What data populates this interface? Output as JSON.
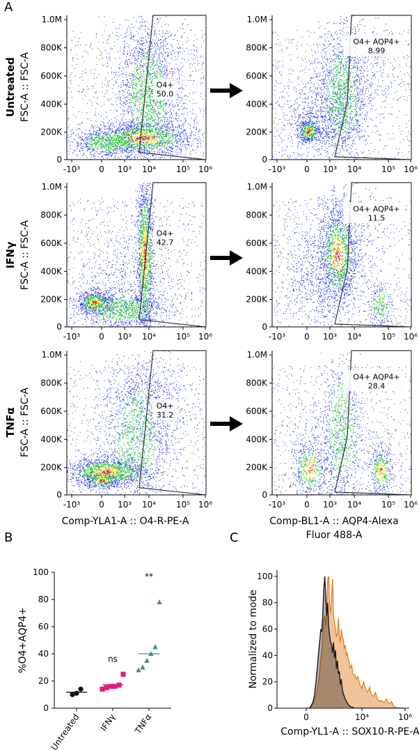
{
  "figure": {
    "panel_letters": [
      "A",
      "B",
      "C"
    ],
    "row_labels": [
      "Untreated",
      "IFNγ",
      "TNFα"
    ],
    "x_title_left": "Comp-YLA1-A :: O4-R-PE-A",
    "x_title_right_line1": "Comp-BL1-A :: AQP4-Alexa",
    "x_title_right_line2": "Fluor 488-A",
    "y_title_flow": "FSC-A :: FSC-A",
    "x_ticks": [
      "-10³",
      "0",
      "10³",
      "10⁴",
      "10⁵",
      "10⁶"
    ],
    "y_ticks": [
      "0",
      "200K",
      "400K",
      "600K",
      "800K",
      "1.0M"
    ]
  },
  "colors": {
    "density_low": "#1f2fe0",
    "density_mid": "#23c92e",
    "density_high": "#f0e020",
    "density_peak": "#e0200f",
    "ifn_marker": "#e21d7a",
    "tnf_marker": "#3d8c8c",
    "hist_orange": "#e07b1a",
    "hist_black": "#1a1a1a"
  },
  "chart_data": [
    {
      "type": "scatter",
      "panel": "A",
      "row": "Untreated",
      "gate_name": "O4+",
      "gate_value": "50.0",
      "xlabel": "Comp-YLA1-A :: O4-R-PE-A",
      "ylabel": "FSC-A :: FSC-A"
    },
    {
      "type": "scatter",
      "panel": "A",
      "row": "Untreated",
      "gate_name": "O4+ AQP4+",
      "gate_value": "8.99",
      "xlabel": "Comp-BL1-A :: AQP4-Alexa Fluor 488-A",
      "ylabel": "FSC-A :: FSC-A"
    },
    {
      "type": "scatter",
      "panel": "A",
      "row": "IFNγ",
      "gate_name": "O4+",
      "gate_value": "42.7",
      "xlabel": "Comp-YLA1-A :: O4-R-PE-A",
      "ylabel": "FSC-A :: FSC-A"
    },
    {
      "type": "scatter",
      "panel": "A",
      "row": "IFNγ",
      "gate_name": "O4+ AQP4+",
      "gate_value": "11.5",
      "xlabel": "Comp-BL1-A :: AQP4-Alexa Fluor 488-A",
      "ylabel": "FSC-A :: FSC-A"
    },
    {
      "type": "scatter",
      "panel": "A",
      "row": "TNFα",
      "gate_name": "O4+",
      "gate_value": "31.2",
      "xlabel": "Comp-YLA1-A :: O4-R-PE-A",
      "ylabel": "FSC-A :: FSC-A"
    },
    {
      "type": "scatter",
      "panel": "A",
      "row": "TNFα",
      "gate_name": "O4+ AQP4+",
      "gate_value": "28.4",
      "xlabel": "Comp-BL1-A :: AQP4-Alexa Fluor 488-A",
      "ylabel": "FSC-A :: FSC-A"
    },
    {
      "type": "scatter",
      "panel": "B",
      "ylabel": "%O4+AQP4+",
      "ylim": [
        0,
        100
      ],
      "yticks": [
        "0",
        "20",
        "40",
        "60",
        "80",
        "100"
      ],
      "categories": [
        "Untreated",
        "IFNγ",
        "TNFα"
      ],
      "series": [
        {
          "name": "Untreated",
          "values": [
            10,
            11,
            14
          ],
          "mean": 11.7
        },
        {
          "name": "IFNγ",
          "values": [
            14,
            15,
            16,
            16,
            17,
            25
          ],
          "mean": 17.2
        },
        {
          "name": "TNFα",
          "values": [
            28,
            30,
            35,
            40,
            45,
            78
          ],
          "mean": 40
        }
      ],
      "annotations": [
        {
          "category": "IFNγ",
          "text": "ns",
          "y": 34
        },
        {
          "category": "TNFα",
          "text": "**",
          "y": 95
        }
      ]
    },
    {
      "type": "area",
      "panel": "C",
      "ylabel": "Normalized to mode",
      "xlabel": "Comp-YL1-A :: SOX10-R-PE-A",
      "ylim": [
        0,
        100
      ],
      "yticks": [
        "0",
        "20",
        "40",
        "60",
        "80",
        "100"
      ],
      "xticks": [
        "0",
        "10⁴",
        "10⁶"
      ],
      "series": [
        {
          "name": "orange histogram",
          "color": "#e07b1a",
          "x": [
            0.0,
            0.05,
            0.08,
            0.11,
            0.14,
            0.17,
            0.2,
            0.23,
            0.26,
            0.28,
            0.3,
            0.32,
            0.34,
            0.36,
            0.38,
            0.4,
            0.42,
            0.44,
            0.46,
            0.48,
            0.5,
            0.52,
            0.54,
            0.56,
            0.58,
            0.6,
            0.62,
            0.64,
            0.66,
            0.68,
            0.7,
            0.72,
            0.74,
            0.76,
            0.78,
            0.8,
            0.82,
            0.84,
            0.86,
            0.88,
            0.9,
            0.93,
            0.96,
            1.0,
            1.03,
            1.06,
            1.1,
            1.14,
            1.18,
            1.22,
            1.26,
            1.3,
            1.34,
            1.38,
            1.42,
            1.46,
            1.5,
            1.55,
            1.6,
            1.65,
            1.7,
            1.75,
            1.8,
            1.9,
            2.0
          ],
          "y": [
            0,
            0,
            1,
            3,
            4,
            6,
            10,
            15,
            22,
            30,
            38,
            45,
            55,
            68,
            70,
            62,
            75,
            98,
            100,
            78,
            72,
            85,
            98,
            70,
            65,
            60,
            54,
            57,
            68,
            55,
            50,
            60,
            55,
            52,
            45,
            48,
            40,
            42,
            38,
            35,
            30,
            33,
            26,
            25,
            22,
            24,
            18,
            15,
            20,
            14,
            12,
            16,
            10,
            9,
            12,
            7,
            5,
            6,
            4,
            7,
            3,
            5,
            1,
            0,
            0
          ]
        },
        {
          "name": "black histogram",
          "color": "#1a1a1a",
          "x": [
            0.0,
            0.08,
            0.11,
            0.14,
            0.17,
            0.2,
            0.23,
            0.26,
            0.28,
            0.3,
            0.32,
            0.34,
            0.36,
            0.38,
            0.4,
            0.42,
            0.44,
            0.46,
            0.48,
            0.5,
            0.52,
            0.54,
            0.56,
            0.58,
            0.6,
            0.62,
            0.64,
            0.66,
            0.68,
            0.7,
            0.72,
            0.74,
            0.77,
            0.8,
            0.84,
            0.88,
            0.92,
            1.0,
            2.0
          ],
          "y": [
            0,
            0,
            2,
            5,
            10,
            20,
            32,
            45,
            52,
            60,
            58,
            72,
            90,
            100,
            85,
            70,
            80,
            62,
            55,
            50,
            48,
            42,
            50,
            38,
            44,
            30,
            36,
            26,
            28,
            18,
            22,
            14,
            10,
            7,
            4,
            2,
            1,
            0,
            0
          ]
        }
      ]
    }
  ]
}
